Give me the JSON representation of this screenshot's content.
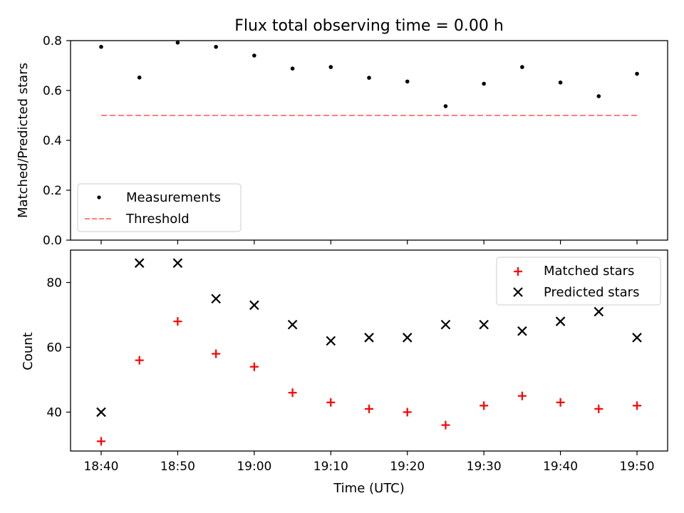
{
  "chart_data": [
    {
      "type": "scatter",
      "title": "Flux total observing time = 0.00 h",
      "xlabel": "",
      "ylabel": "Matched/Predicted stars",
      "ylim": [
        0.0,
        0.8
      ],
      "xlim": [
        "18:36",
        "19:54"
      ],
      "yticks": [
        "0.0",
        "0.2",
        "0.4",
        "0.6",
        "0.8"
      ],
      "legend_position": "lower-left",
      "grid": false,
      "x": [
        "18:40",
        "18:45",
        "18:50",
        "18:55",
        "19:00",
        "19:05",
        "19:10",
        "19:15",
        "19:20",
        "19:25",
        "19:30",
        "19:35",
        "19:40",
        "19:45",
        "19:50"
      ],
      "series": [
        {
          "name": "Measurements",
          "marker": "dot",
          "color": "#000000",
          "values": [
            0.775,
            0.652,
            0.792,
            0.775,
            0.74,
            0.688,
            0.694,
            0.651,
            0.636,
            0.537,
            0.627,
            0.694,
            0.632,
            0.577,
            0.667
          ]
        },
        {
          "name": "Threshold",
          "marker": "dashed-line",
          "color": "#ff7f7f",
          "values": [
            0.5,
            0.5
          ]
        }
      ]
    },
    {
      "type": "scatter",
      "title": "",
      "xlabel": "Time (UTC)",
      "ylabel": "Count",
      "ylim": [
        28,
        90
      ],
      "xlim": [
        "18:36",
        "19:54"
      ],
      "yticks": [
        "40",
        "60",
        "80"
      ],
      "xticks": [
        "18:40",
        "18:50",
        "19:00",
        "19:10",
        "19:20",
        "19:30",
        "19:40",
        "19:50"
      ],
      "legend_position": "upper-right",
      "grid": false,
      "x": [
        "18:40",
        "18:45",
        "18:50",
        "18:55",
        "19:00",
        "19:05",
        "19:10",
        "19:15",
        "19:20",
        "19:25",
        "19:30",
        "19:35",
        "19:40",
        "19:45",
        "19:50"
      ],
      "series": [
        {
          "name": "Matched stars",
          "marker": "plus",
          "color": "#ff0000",
          "values": [
            31,
            56,
            68,
            58,
            54,
            46,
            43,
            41,
            40,
            36,
            42,
            45,
            43,
            41,
            42
          ]
        },
        {
          "name": "Predicted stars",
          "marker": "x",
          "color": "#000000",
          "values": [
            40,
            86,
            86,
            75,
            73,
            67,
            62,
            63,
            63,
            67,
            67,
            65,
            68,
            71,
            63
          ]
        }
      ]
    }
  ]
}
